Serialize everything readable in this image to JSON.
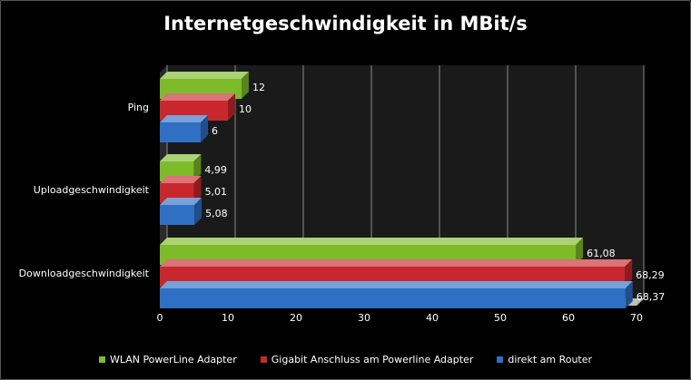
{
  "chart_data": {
    "type": "bar",
    "orientation": "horizontal",
    "title": "Internetgeschwindigkeit in MBit/s",
    "categories": [
      "Ping",
      "Uploadgeschwindigkeit",
      "Downloadgeschwindigkeit"
    ],
    "series": [
      {
        "name": "WLAN PowerLine Adapter",
        "color": "#7dbb2a",
        "values": [
          12,
          4.99,
          61.08
        ],
        "labels": [
          "12",
          "4,99",
          "61,08"
        ]
      },
      {
        "name": "Gigabit Anschluss am Powerline Adapter",
        "color": "#c8282d",
        "values": [
          10,
          5.01,
          68.29
        ],
        "labels": [
          "10",
          "5,01",
          "68,29"
        ]
      },
      {
        "name": "direkt am Router",
        "color": "#2f6fc4",
        "values": [
          6,
          5.08,
          68.37
        ],
        "labels": [
          "6",
          "5,08",
          "68,37"
        ]
      }
    ],
    "xlim": [
      0,
      70
    ],
    "ticks": [
      0,
      10,
      20,
      30,
      40,
      50,
      60,
      70
    ],
    "grid": true,
    "legend": "bottom"
  }
}
